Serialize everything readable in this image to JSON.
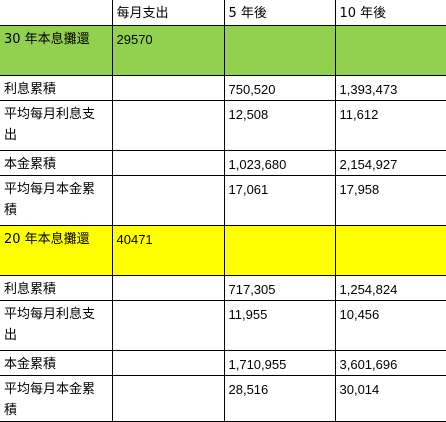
{
  "header": {
    "corner": "",
    "monthly": "每月支出",
    "five_years": "5 年後",
    "ten_years": "10 年後"
  },
  "section_colors": {
    "thirty_year": "#92d050",
    "twenty_year": "#ffff00"
  },
  "thirty_year": {
    "label": "30 年本息攤還",
    "monthly": "29570",
    "rows": [
      {
        "label": "利息累積",
        "monthly": "",
        "y5": "750,520",
        "y10": "1,393,473"
      },
      {
        "label": "平均每月利息支出",
        "monthly": "",
        "y5": "12,508",
        "y10": "11,612"
      },
      {
        "label": "本金累積",
        "monthly": "",
        "y5": "1,023,680",
        "y10": "2,154,927"
      },
      {
        "label": "平均每月本金累積",
        "monthly": "",
        "y5": "17,061",
        "y10": "17,958"
      }
    ]
  },
  "twenty_year": {
    "label": "20 年本息攤還",
    "monthly": "40471",
    "rows": [
      {
        "label": "利息累積",
        "monthly": "",
        "y5": "717,305",
        "y10": "1,254,824"
      },
      {
        "label": "平均每月利息支出",
        "monthly": "",
        "y5": "11,955",
        "y10": "10,456"
      },
      {
        "label": "本金累積",
        "monthly": "",
        "y5": "1,710,955",
        "y10": "3,601,696"
      },
      {
        "label": "平均每月本金累積",
        "monthly": "",
        "y5": "28,516",
        "y10": "30,014"
      }
    ]
  }
}
